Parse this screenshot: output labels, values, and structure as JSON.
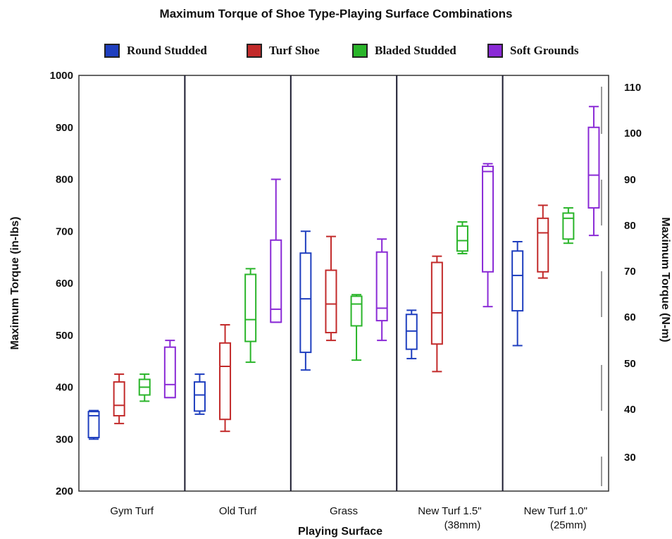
{
  "chart_data": {
    "type": "box",
    "title": "Maximum Torque of Shoe Type-Playing Surface Combinations",
    "xlabel": "Playing Surface",
    "ylabel": "Maximum Torque (in-lbs)",
    "y2label": "Maximum Torque (N-m)",
    "ylim": [
      200,
      1000
    ],
    "yticks": [
      200,
      300,
      400,
      500,
      600,
      700,
      800,
      900,
      1000
    ],
    "y2ticks": [
      30,
      40,
      50,
      60,
      70,
      80,
      90,
      100,
      110
    ],
    "categories": [
      [
        "Gym Turf"
      ],
      [
        "Old Turf"
      ],
      [
        "Grass"
      ],
      [
        "New Turf 1.5\"",
        "(38mm)"
      ],
      [
        "New Turf 1.0\"",
        "(25mm)"
      ]
    ],
    "legend_position": "top",
    "series": [
      {
        "name": "Round Studded",
        "color": "#1f3fbf",
        "boxes": [
          {
            "min": 300,
            "q1": 303,
            "median": 345,
            "q3": 353,
            "max": 355
          },
          {
            "min": 348,
            "q1": 354,
            "median": 385,
            "q3": 410,
            "max": 425
          },
          {
            "min": 433,
            "q1": 467,
            "median": 570,
            "q3": 658,
            "max": 700
          },
          {
            "min": 455,
            "q1": 473,
            "median": 508,
            "q3": 540,
            "max": 548
          },
          {
            "min": 480,
            "q1": 547,
            "median": 615,
            "q3": 662,
            "max": 680
          }
        ]
      },
      {
        "name": "Turf Shoe",
        "color": "#c22a2a",
        "boxes": [
          {
            "min": 330,
            "q1": 345,
            "median": 365,
            "q3": 410,
            "max": 425
          },
          {
            "min": 315,
            "q1": 338,
            "median": 440,
            "q3": 485,
            "max": 520
          },
          {
            "min": 490,
            "q1": 505,
            "median": 560,
            "q3": 625,
            "max": 690
          },
          {
            "min": 430,
            "q1": 483,
            "median": 543,
            "q3": 640,
            "max": 652
          },
          {
            "min": 610,
            "q1": 622,
            "median": 697,
            "q3": 725,
            "max": 750
          }
        ]
      },
      {
        "name": "Bladed Studded",
        "color": "#2ab52a",
        "boxes": [
          {
            "min": 373,
            "q1": 385,
            "median": 400,
            "q3": 415,
            "max": 425
          },
          {
            "min": 448,
            "q1": 488,
            "median": 530,
            "q3": 617,
            "max": 628
          },
          {
            "min": 452,
            "q1": 518,
            "median": 560,
            "q3": 575,
            "max": 578
          },
          {
            "min": 657,
            "q1": 662,
            "median": 682,
            "q3": 710,
            "max": 718
          },
          {
            "min": 677,
            "q1": 685,
            "median": 725,
            "q3": 735,
            "max": 745
          }
        ]
      },
      {
        "name": "Soft Grounds",
        "color": "#8a2ad6",
        "boxes": [
          {
            "min": 380,
            "q1": 380,
            "median": 405,
            "q3": 477,
            "max": 490
          },
          {
            "min": 525,
            "q1": 525,
            "median": 550,
            "q3": 683,
            "max": 800
          },
          {
            "min": 490,
            "q1": 528,
            "median": 552,
            "q3": 660,
            "max": 685
          },
          {
            "min": 555,
            "q1": 622,
            "median": 815,
            "q3": 825,
            "max": 830
          },
          {
            "min": 692,
            "q1": 745,
            "median": 808,
            "q3": 900,
            "max": 940
          }
        ]
      }
    ]
  }
}
